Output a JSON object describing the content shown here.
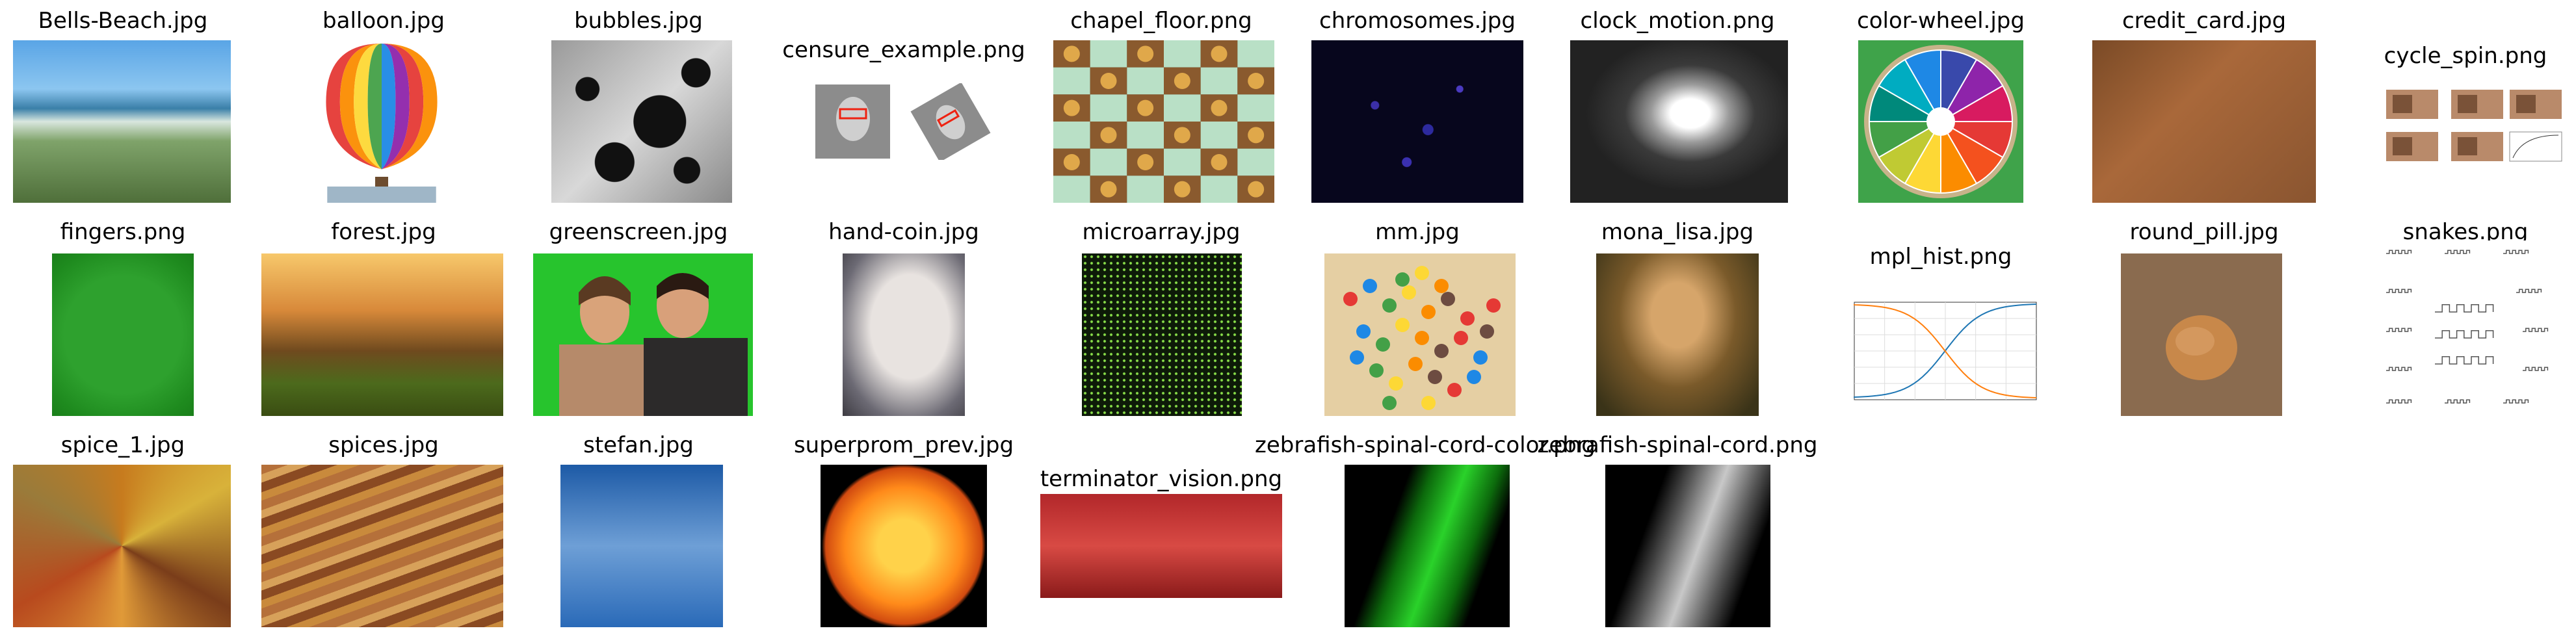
{
  "images": [
    {
      "caption": "Bells-Beach.jpg"
    },
    {
      "caption": "balloon.jpg"
    },
    {
      "caption": "bubbles.jpg"
    },
    {
      "caption": "censure_example.png"
    },
    {
      "caption": "chapel_floor.png"
    },
    {
      "caption": "chromosomes.jpg"
    },
    {
      "caption": "clock_motion.png"
    },
    {
      "caption": "color-wheel.jpg"
    },
    {
      "caption": "credit_card.jpg"
    },
    {
      "caption": "cycle_spin.png"
    },
    {
      "caption": "fingers.png"
    },
    {
      "caption": "forest.jpg"
    },
    {
      "caption": "greenscreen.jpg"
    },
    {
      "caption": "hand-coin.jpg"
    },
    {
      "caption": "microarray.jpg"
    },
    {
      "caption": "mm.jpg"
    },
    {
      "caption": "mona_lisa.jpg"
    },
    {
      "caption": "mpl_hist.png"
    },
    {
      "caption": "round_pill.jpg"
    },
    {
      "caption": "snakes.png"
    },
    {
      "caption": "spice_1.jpg"
    },
    {
      "caption": "spices.jpg"
    },
    {
      "caption": "stefan.jpg"
    },
    {
      "caption": "superprom_prev.jpg"
    },
    {
      "caption": "terminator_vision.png"
    },
    {
      "caption": "zebrafish-spinal-cord-color.png"
    },
    {
      "caption": "zebrafish-spinal-cord.png"
    }
  ]
}
